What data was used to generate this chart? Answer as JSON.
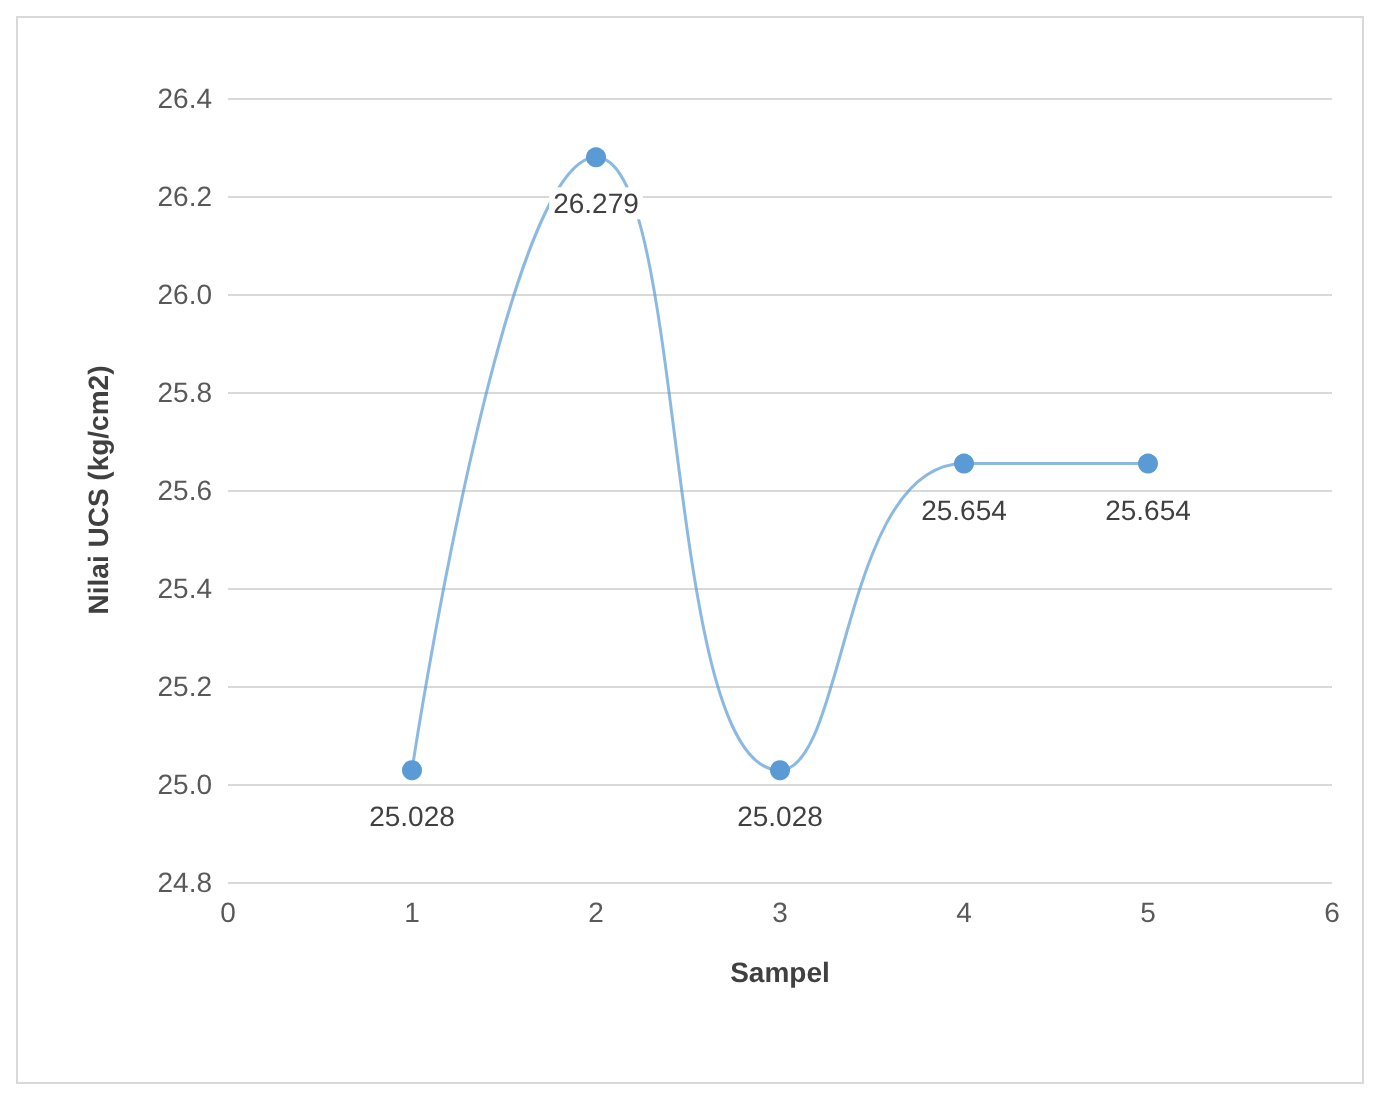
{
  "chart_data": {
    "type": "line",
    "xlabel": "Sampel",
    "ylabel": "Nilai UCS (kg/cm2)",
    "x": [
      1,
      2,
      3,
      4,
      5
    ],
    "series": [
      {
        "color": "#5b9bd5",
        "values": [
          25.028,
          26.279,
          25.028,
          25.654,
          25.654
        ]
      }
    ],
    "xlim": [
      0,
      6
    ],
    "xticks": [
      0,
      1,
      2,
      3,
      4,
      5,
      6
    ],
    "ylim": [
      24.8,
      26.4
    ],
    "yticks": [
      {
        "value": 24.8,
        "label": "24.8"
      },
      {
        "value": 25,
        "label": "25.0"
      },
      {
        "value": 25.2,
        "label": "25.2"
      },
      {
        "value": 25.4,
        "label": "25.4"
      },
      {
        "value": 25.6,
        "label": "25.6"
      },
      {
        "value": 25.8,
        "label": "25.8"
      },
      {
        "value": 26,
        "label": "26.0"
      },
      {
        "value": 26.2,
        "label": "26.2"
      },
      {
        "value": 26.4,
        "label": "26.4"
      }
    ],
    "grid": "y",
    "marker": "circle",
    "line_style": "solid",
    "data_labels": true
  }
}
